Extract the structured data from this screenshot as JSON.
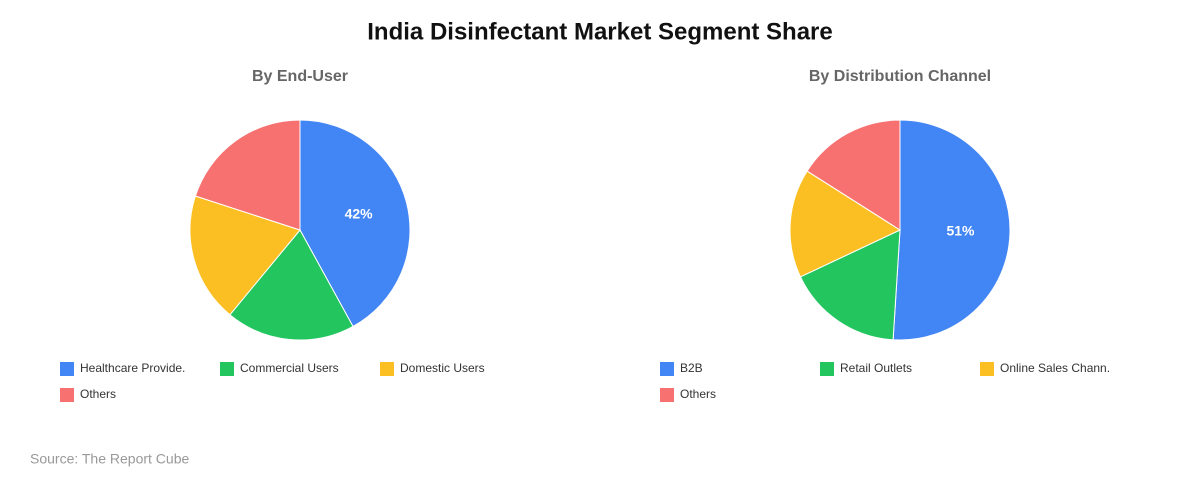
{
  "title": "India Disinfectant Market Segment Share",
  "source": "Source: The Report Cube",
  "chart_data": [
    {
      "type": "pie",
      "title": "By End-User",
      "categories": [
        "Healthcare Provide.",
        "Commercial Users",
        "Domestic Users",
        "Others"
      ],
      "values": [
        42,
        19,
        19,
        20
      ],
      "value_labels": [
        "42%",
        null,
        null,
        null
      ],
      "colors": [
        "#4285f4",
        "#22c55e",
        "#fbbf24",
        "#f87171"
      ]
    },
    {
      "type": "pie",
      "title": "By Distribution Channel",
      "categories": [
        "B2B",
        "Retail Outlets",
        "Online Sales Chann.",
        "Others"
      ],
      "values": [
        51,
        17,
        16,
        16
      ],
      "value_labels": [
        "51%",
        null,
        null,
        null
      ],
      "colors": [
        "#4285f4",
        "#22c55e",
        "#fbbf24",
        "#f87171"
      ]
    }
  ]
}
